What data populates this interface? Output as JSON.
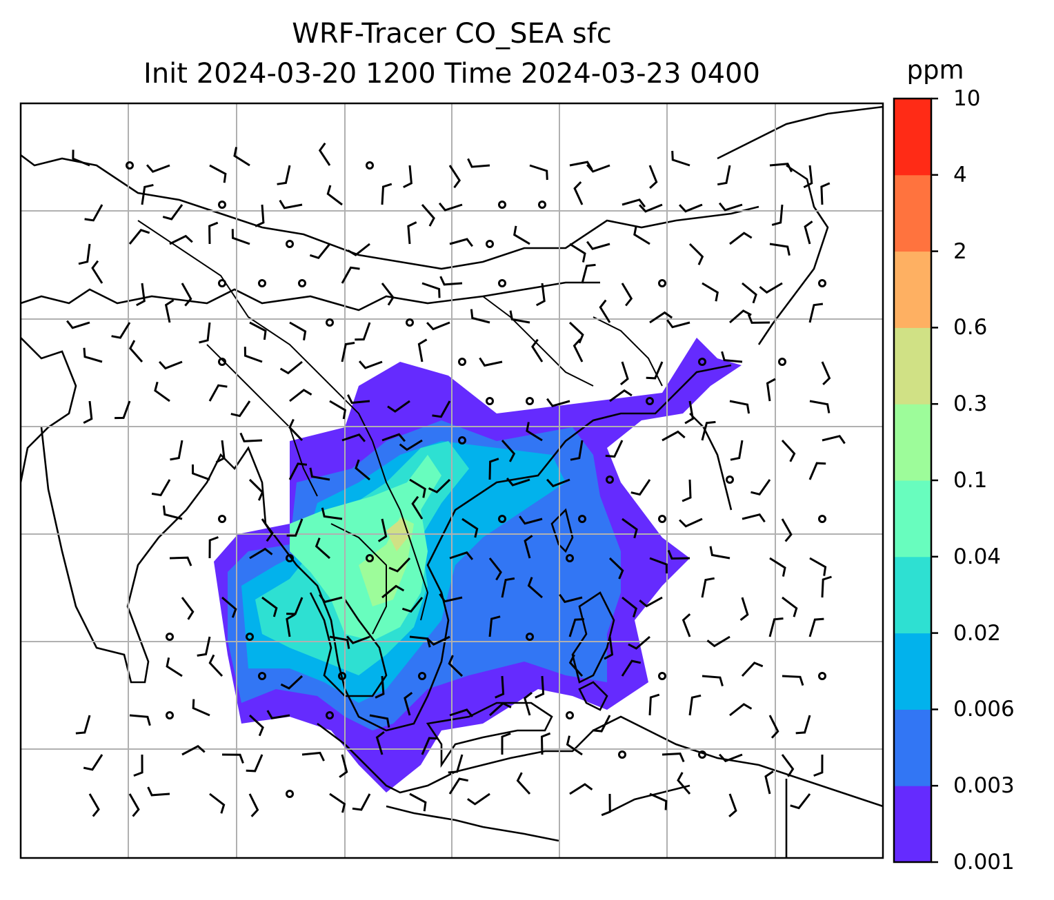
{
  "title": {
    "line1": "WRF-Tracer CO_SEA sfc",
    "line2": "Init 2024-03-20 1200 Time 2024-03-23 0400"
  },
  "colorbar": {
    "unit": "ppm",
    "levels": [
      "0.001",
      "0.003",
      "0.006",
      "0.02",
      "0.04",
      "0.1",
      "0.3",
      "0.6",
      "2",
      "4",
      "10"
    ],
    "colors": [
      "#652bfe",
      "#3276f4",
      "#02b2ec",
      "#2ee0d2",
      "#68fdbe",
      "#9dfc9a",
      "#d0e185",
      "#feb062",
      "#ff733e",
      "#ff2b16"
    ]
  },
  "map": {
    "grid": "on",
    "features": [
      "coastlines",
      "country-borders",
      "wind-barbs",
      "calm-wind-circles",
      "tracer-contours"
    ]
  }
}
